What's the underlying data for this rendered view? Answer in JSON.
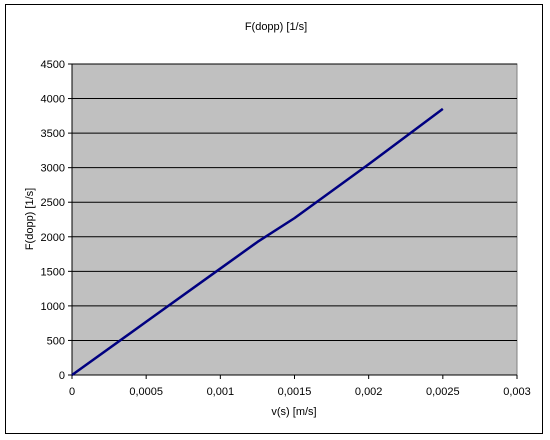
{
  "chart_data": {
    "type": "line",
    "title": "F(dopp) [1/s]",
    "xlabel": "v(s) [m/s]",
    "ylabel": "F(dopp) [1/s]",
    "xlim": [
      0,
      0.003
    ],
    "ylim": [
      0,
      4500
    ],
    "x_ticks": [
      0,
      0.0005,
      0.001,
      0.0015,
      0.002,
      0.0025,
      0.003
    ],
    "x_tick_labels": [
      "0",
      "0,0005",
      "0,001",
      "0,0015",
      "0,002",
      "0,0025",
      "0,003"
    ],
    "y_ticks": [
      0,
      500,
      1000,
      1500,
      2000,
      2500,
      3000,
      3500,
      4000,
      4500
    ],
    "y_tick_labels": [
      "0",
      "500",
      "1000",
      "1500",
      "2000",
      "2500",
      "3000",
      "3500",
      "4000",
      "4500"
    ],
    "grid": "horizontal",
    "legend": "none",
    "plot_background": "#c0c0c0",
    "series": [
      {
        "color": "#000080",
        "x": [
          0,
          0.0005,
          0.001,
          0.00125,
          0.0015,
          0.002,
          0.0025
        ],
        "y": [
          0,
          770,
          1540,
          1925,
          2270,
          3050,
          3850
        ]
      }
    ]
  }
}
